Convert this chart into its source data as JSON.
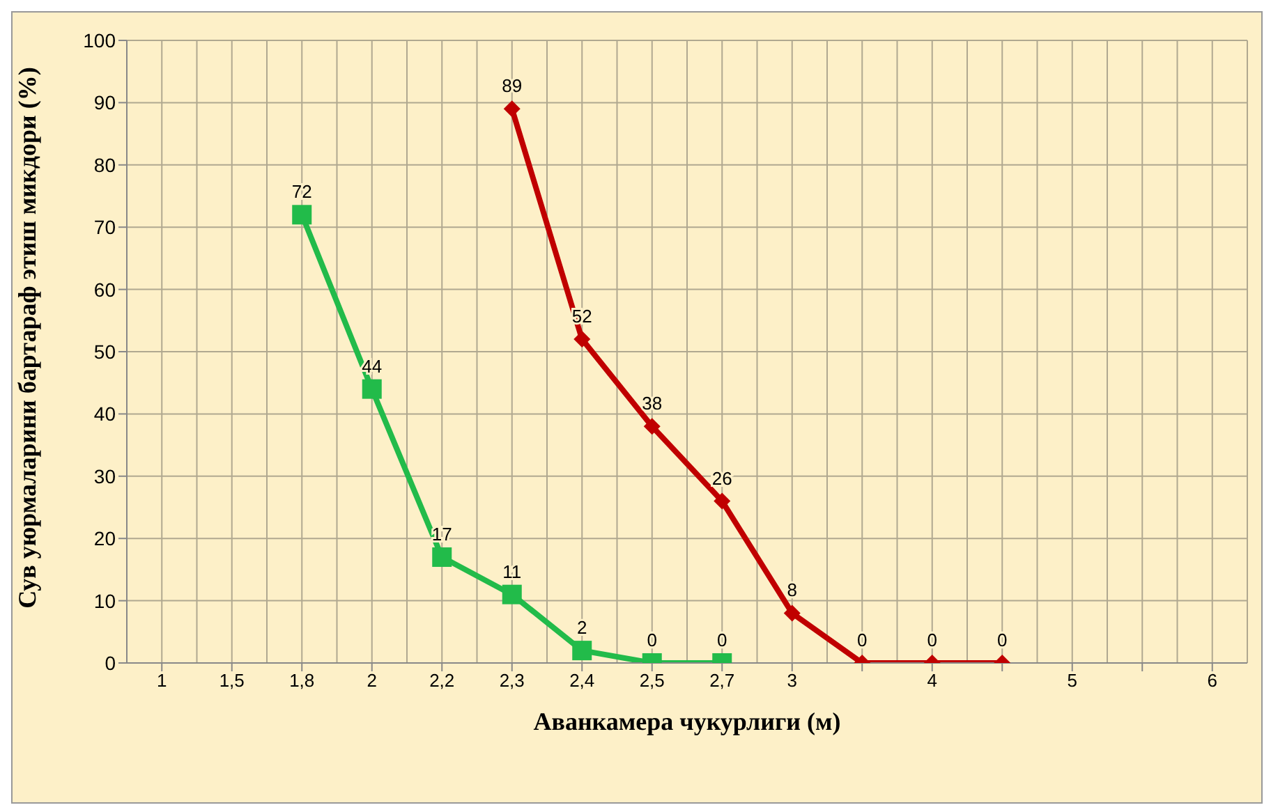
{
  "chart_data": {
    "type": "line",
    "xlabel": "Аванкамера чукурлиги   (м)",
    "ylabel": "Сув уюрмаларини бартараф этиш микдори     (%)",
    "categories": [
      "1",
      "1,5",
      "1,8",
      "2",
      "2,2",
      "2,3",
      "2,4",
      "2,5",
      "2,7",
      "3",
      null,
      "4",
      null,
      "5",
      null,
      "6"
    ],
    "series": [
      {
        "color": "#22bb4a",
        "marker": "square",
        "values": [
          null,
          null,
          72,
          44,
          17,
          11,
          2,
          0,
          0,
          null,
          null,
          null,
          null,
          null,
          null,
          null
        ]
      },
      {
        "color": "#c00000",
        "marker": "diamond",
        "values": [
          null,
          null,
          null,
          null,
          null,
          89,
          52,
          38,
          26,
          8,
          0,
          0,
          0,
          null,
          null,
          null
        ]
      }
    ],
    "ylim": [
      0,
      100
    ],
    "yticks": [
      0,
      10,
      20,
      30,
      40,
      50,
      60,
      70,
      80,
      90,
      100
    ],
    "grid": true,
    "data_labels": true,
    "line_style": "solid"
  }
}
